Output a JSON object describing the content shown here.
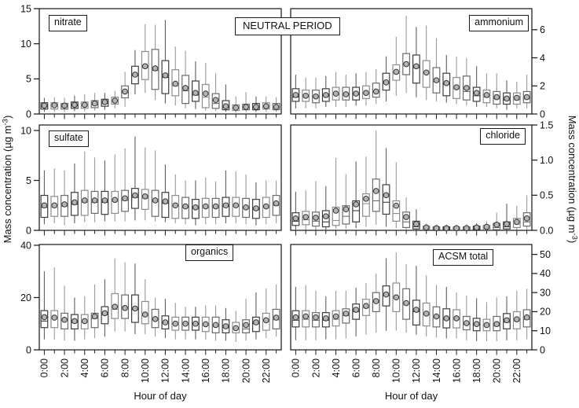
{
  "figure": {
    "background": "#ffffff",
    "period_label": "NEUTRAL PERIOD",
    "x_axis_title": "Hour of day",
    "y_axis_title": {
      "base": "Mass concentration (µg m",
      "sup": "-3",
      "close": ")"
    },
    "x_tick_labels": [
      "0:00",
      "2:00",
      "4:00",
      "6:00",
      "8:00",
      "10:00",
      "12:00",
      "14:00",
      "16:00",
      "18:00",
      "20:00",
      "22:00"
    ]
  },
  "chart_data": {
    "type": "box",
    "x_unit": "hour of day (24 hourly boxes per panel)",
    "n_boxes_per_panel": 24,
    "marker_semantics": {
      "box": "interquartile range",
      "inner_line": "median",
      "whiskers": "range",
      "circle": "mean"
    },
    "colors": {
      "box_fill": "#ffffff",
      "whisker_gray": "#9a9a9a",
      "whisker_dark": "#606060",
      "box_stroke_dark": "#3d3d3d",
      "box_stroke_mid": "#6a6a6a",
      "box_stroke_light": "#8c8c8c",
      "mean_fill": "#b5b5b5",
      "mean_stroke": "#333333",
      "frame": "#1c1c1c"
    },
    "panels": [
      {
        "key": "nitrate",
        "label": "nitrate",
        "grid": {
          "row": 0,
          "col": 0
        },
        "axis_side": "left",
        "ylim": [
          0,
          15
        ],
        "yticks": [
          0,
          5,
          10,
          15
        ],
        "ytick_labels": [
          "0",
          "5",
          "10",
          "15"
        ],
        "stats": {
          "lo": [
            0.3,
            0.3,
            0.3,
            0.4,
            0.4,
            0.5,
            0.6,
            0.8,
            1.0,
            2.8,
            3.0,
            2.0,
            1.5,
            1.2,
            0.8,
            0.7,
            0.5,
            0.4,
            0.3,
            0.2,
            0.3,
            0.3,
            0.3,
            0.3
          ],
          "q1": [
            0.7,
            0.7,
            0.7,
            0.8,
            0.8,
            0.9,
            1.1,
            1.4,
            2.3,
            4.3,
            4.9,
            3.5,
            2.9,
            2.6,
            1.5,
            1.8,
            0.9,
            0.8,
            0.6,
            0.5,
            0.6,
            0.6,
            0.7,
            0.6
          ],
          "med": [
            1.0,
            1.1,
            1.0,
            1.2,
            1.2,
            1.3,
            1.5,
            1.8,
            3.1,
            5.5,
            6.6,
            6.2,
            5.2,
            4.0,
            3.3,
            2.7,
            2.4,
            1.5,
            0.9,
            0.8,
            0.9,
            0.9,
            1.0,
            0.9
          ],
          "q3": [
            1.6,
            1.6,
            1.5,
            1.7,
            1.7,
            1.9,
            2.1,
            2.4,
            4.0,
            6.8,
            8.9,
            9.2,
            7.6,
            6.3,
            5.5,
            4.7,
            4.2,
            2.9,
            1.9,
            1.3,
            1.4,
            1.5,
            1.6,
            1.5
          ],
          "hi": [
            2.3,
            2.4,
            2.3,
            2.6,
            2.8,
            3.0,
            3.0,
            3.3,
            6.0,
            9.1,
            12.8,
            12.7,
            13.4,
            9.6,
            9.0,
            7.5,
            7.3,
            5.8,
            4.2,
            2.5,
            3.1,
            2.5,
            2.5,
            2.4
          ],
          "mean": [
            1.2,
            1.25,
            1.2,
            1.3,
            1.3,
            1.5,
            1.7,
            1.9,
            3.2,
            5.6,
            6.8,
            6.5,
            5.5,
            4.3,
            3.7,
            3.0,
            2.9,
            2.0,
            1.1,
            0.9,
            1.0,
            1.0,
            1.1,
            1.0
          ]
        }
      },
      {
        "key": "ammonium",
        "label": "ammonium",
        "grid": {
          "row": 0,
          "col": 1
        },
        "axis_side": "right",
        "ylim": [
          0,
          7.5
        ],
        "yticks": [
          0,
          2,
          4,
          6
        ],
        "ytick_labels": [
          "0",
          "2",
          "4",
          "6"
        ],
        "stats": {
          "lo": [
            0.4,
            0.4,
            0.4,
            0.5,
            0.5,
            0.5,
            0.6,
            0.6,
            0.7,
            0.9,
            1.3,
            1.5,
            1.2,
            1.0,
            0.9,
            0.8,
            0.7,
            0.6,
            0.5,
            0.5,
            0.4,
            0.3,
            0.4,
            0.4
          ],
          "q1": [
            0.9,
            0.9,
            0.8,
            0.9,
            1.0,
            1.0,
            1.0,
            1.1,
            1.2,
            1.7,
            2.4,
            2.8,
            2.2,
            1.9,
            1.5,
            1.3,
            1.1,
            1.0,
            0.9,
            0.8,
            0.7,
            0.7,
            0.7,
            0.8
          ],
          "med": [
            1.2,
            1.2,
            1.2,
            1.3,
            1.4,
            1.4,
            1.4,
            1.5,
            1.6,
            2.2,
            2.9,
            3.5,
            3.3,
            2.9,
            2.3,
            2.1,
            1.8,
            1.6,
            1.3,
            1.2,
            1.1,
            1.0,
            1.0,
            1.1
          ],
          "q3": [
            1.8,
            1.7,
            1.7,
            1.8,
            1.9,
            1.9,
            1.9,
            2.0,
            2.2,
            2.9,
            3.5,
            4.3,
            4.2,
            3.8,
            3.3,
            2.9,
            2.6,
            2.7,
            1.9,
            1.7,
            1.6,
            1.5,
            1.5,
            1.6
          ],
          "hi": [
            2.8,
            2.6,
            2.6,
            2.7,
            3.0,
            2.8,
            2.9,
            3.0,
            3.2,
            4.1,
            5.5,
            7.0,
            6.2,
            6.3,
            5.4,
            4.2,
            4.1,
            4.0,
            3.4,
            2.9,
            2.9,
            2.4,
            2.3,
            2.8
          ],
          "mean": [
            1.35,
            1.3,
            1.25,
            1.35,
            1.45,
            1.4,
            1.45,
            1.5,
            1.6,
            2.25,
            3.0,
            3.55,
            3.4,
            2.95,
            2.4,
            2.2,
            1.9,
            1.85,
            1.5,
            1.35,
            1.2,
            1.1,
            1.15,
            1.2
          ]
        }
      },
      {
        "key": "sulfate",
        "label": "sulfate",
        "grid": {
          "row": 1,
          "col": 0
        },
        "axis_side": "left",
        "ylim": [
          0,
          10.55
        ],
        "yticks": [
          0,
          5,
          10
        ],
        "ytick_labels": [
          "0",
          "5",
          "10"
        ],
        "stats": {
          "lo": [
            0.6,
            0.7,
            0.5,
            0.7,
            0.8,
            0.8,
            0.9,
            0.9,
            0.9,
            1.0,
            1.0,
            0.9,
            0.8,
            0.7,
            0.6,
            0.5,
            0.6,
            0.6,
            0.7,
            0.7,
            0.6,
            0.5,
            0.6,
            0.7
          ],
          "q1": [
            1.3,
            1.4,
            1.4,
            1.5,
            1.5,
            1.7,
            1.6,
            1.7,
            1.9,
            2.2,
            2.1,
            1.4,
            1.3,
            1.2,
            1.2,
            1.2,
            1.3,
            1.3,
            1.4,
            1.4,
            1.3,
            1.2,
            1.3,
            1.5
          ],
          "med": [
            2.3,
            2.3,
            2.4,
            2.6,
            2.8,
            2.8,
            2.8,
            2.9,
            3.0,
            3.3,
            3.2,
            2.9,
            2.7,
            2.4,
            2.3,
            2.2,
            2.3,
            2.3,
            2.4,
            2.4,
            2.2,
            2.1,
            2.3,
            2.5
          ],
          "q3": [
            3.5,
            3.4,
            3.5,
            3.8,
            4.0,
            3.9,
            3.9,
            3.9,
            4.0,
            4.2,
            4.1,
            4.0,
            3.8,
            3.5,
            3.3,
            3.1,
            3.2,
            3.2,
            3.3,
            3.3,
            3.2,
            3.1,
            3.3,
            3.5
          ],
          "hi": [
            6.0,
            6.2,
            6.0,
            6.7,
            7.9,
            7.3,
            7.0,
            7.6,
            8.2,
            9.4,
            8.3,
            8.0,
            6.6,
            5.6,
            5.0,
            5.0,
            5.3,
            4.9,
            6.0,
            5.9,
            5.6,
            4.8,
            5.0,
            5.0
          ],
          "mean": [
            2.5,
            2.5,
            2.6,
            2.8,
            3.0,
            3.0,
            3.0,
            3.05,
            3.2,
            3.5,
            3.4,
            3.0,
            2.9,
            2.5,
            2.4,
            2.3,
            2.4,
            2.4,
            2.5,
            2.5,
            2.3,
            2.2,
            2.4,
            2.7
          ]
        }
      },
      {
        "key": "chloride",
        "label": "chloride",
        "grid": {
          "row": 1,
          "col": 1
        },
        "axis_side": "right",
        "ylim": [
          0,
          1.5
        ],
        "yticks": [
          0,
          0.5,
          1.0,
          1.5
        ],
        "ytick_labels": [
          "0.0",
          "0.5",
          "1.0",
          "1.5"
        ],
        "stats": {
          "lo": [
            0.01,
            0.01,
            0.01,
            0.01,
            0.02,
            0.02,
            0.03,
            0.05,
            0.08,
            0.05,
            0.03,
            0.01,
            0.0,
            0.0,
            0.0,
            0.0,
            0.0,
            0.0,
            0.0,
            0.0,
            0.0,
            0.0,
            0.01,
            0.01
          ],
          "q1": [
            0.07,
            0.08,
            0.06,
            0.05,
            0.07,
            0.09,
            0.12,
            0.2,
            0.27,
            0.23,
            0.13,
            0.04,
            0.02,
            0.01,
            0.01,
            0.01,
            0.01,
            0.01,
            0.01,
            0.01,
            0.01,
            0.02,
            0.04,
            0.06
          ],
          "med": [
            0.13,
            0.15,
            0.13,
            0.12,
            0.14,
            0.2,
            0.28,
            0.38,
            0.42,
            0.4,
            0.24,
            0.12,
            0.05,
            0.03,
            0.02,
            0.02,
            0.02,
            0.02,
            0.02,
            0.03,
            0.04,
            0.05,
            0.09,
            0.12
          ],
          "q3": [
            0.25,
            0.27,
            0.26,
            0.28,
            0.33,
            0.35,
            0.42,
            0.52,
            0.73,
            0.65,
            0.42,
            0.26,
            0.13,
            0.06,
            0.05,
            0.05,
            0.05,
            0.05,
            0.06,
            0.07,
            0.1,
            0.12,
            0.17,
            0.25
          ],
          "hi": [
            0.55,
            0.57,
            0.7,
            0.63,
            1.03,
            0.8,
            0.98,
            1.05,
            1.42,
            1.17,
            0.97,
            0.47,
            0.3,
            0.1,
            0.08,
            0.08,
            0.08,
            0.09,
            0.1,
            0.13,
            0.25,
            0.38,
            0.35,
            0.5
          ],
          "mean": [
            0.17,
            0.19,
            0.18,
            0.2,
            0.28,
            0.3,
            0.37,
            0.45,
            0.56,
            0.5,
            0.35,
            0.19,
            0.09,
            0.04,
            0.03,
            0.03,
            0.03,
            0.03,
            0.04,
            0.05,
            0.08,
            0.09,
            0.12,
            0.17
          ]
        }
      },
      {
        "key": "organics",
        "label": "organics",
        "grid": {
          "row": 2,
          "col": 0
        },
        "axis_side": "left",
        "ylim": [
          0,
          40.3
        ],
        "yticks": [
          0,
          20,
          40
        ],
        "ytick_labels": [
          "0",
          "20",
          "40"
        ],
        "stats": {
          "lo": [
            4,
            4,
            3.5,
            3.5,
            4,
            4.5,
            5,
            7,
            7,
            6,
            6,
            5,
            4.5,
            4,
            4,
            4,
            4,
            3.5,
            3.5,
            3,
            3.5,
            4,
            4.5,
            5
          ],
          "q1": [
            8.5,
            8.5,
            8,
            8,
            8,
            8.5,
            10,
            12,
            12,
            10.5,
            10,
            8.5,
            8,
            7.5,
            7.5,
            7.5,
            7,
            6.5,
            6.5,
            6.5,
            6.5,
            7,
            7.5,
            8
          ],
          "med": [
            11,
            12,
            11.5,
            10.5,
            10.5,
            12,
            13.5,
            15.5,
            16,
            15.5,
            13,
            11.5,
            10.5,
            10,
            10,
            10,
            9.5,
            9,
            8.5,
            8,
            8,
            10,
            11,
            11.5
          ],
          "q3": [
            15,
            15,
            14,
            13.5,
            13.5,
            14,
            16.5,
            21.5,
            21,
            21,
            18.5,
            15.5,
            13,
            12.5,
            12.5,
            12.5,
            12.5,
            12.5,
            11.5,
            10.5,
            11.5,
            12.5,
            14,
            15.5
          ],
          "hi": [
            30,
            31.5,
            24.5,
            20,
            20.5,
            25,
            27,
            35,
            33.5,
            33,
            27,
            20,
            19.5,
            18,
            16.5,
            16.5,
            17,
            17,
            16,
            15,
            19.5,
            22,
            23.5,
            25
          ],
          "mean": [
            12.5,
            12.3,
            11.5,
            11,
            11,
            12.8,
            14,
            16.5,
            16,
            15.8,
            13.5,
            11.8,
            10.5,
            10,
            10,
            10,
            9.8,
            9.5,
            9,
            8.3,
            9.5,
            10.5,
            11.3,
            12.3
          ]
        }
      },
      {
        "key": "acsm_total",
        "label": "ACSM total",
        "grid": {
          "row": 2,
          "col": 1
        },
        "axis_side": "right",
        "ylim": [
          0,
          55.2
        ],
        "yticks": [
          0,
          10,
          20,
          30,
          40,
          50
        ],
        "ytick_labels": [
          "0",
          "10",
          "20",
          "30",
          "40",
          "50"
        ],
        "stats": {
          "lo": [
            5,
            5,
            5,
            5.5,
            5.5,
            6,
            7,
            8,
            9,
            10,
            10,
            9,
            8,
            7,
            6.5,
            6,
            6,
            5,
            4.5,
            4.5,
            4.5,
            5,
            5,
            5.5
          ],
          "q1": [
            12,
            12,
            12,
            12,
            12.5,
            14,
            16,
            18,
            20,
            23,
            20,
            16,
            13,
            12.5,
            12,
            11.5,
            11.5,
            10.5,
            10,
            10,
            10,
            11,
            11,
            12
          ],
          "med": [
            15.5,
            16,
            15.5,
            15.5,
            16,
            18,
            20,
            22,
            25,
            28.5,
            27,
            24,
            20,
            18.5,
            17,
            16,
            16,
            13.5,
            13,
            12.5,
            12.5,
            14.5,
            15,
            16
          ],
          "q3": [
            20.5,
            20.5,
            19.5,
            19.5,
            20.5,
            21.5,
            24,
            26.5,
            30,
            33.5,
            35,
            32,
            26,
            24.5,
            22.5,
            21.5,
            21,
            17.5,
            16.5,
            16,
            17.5,
            19,
            20,
            21
          ],
          "hi": [
            33,
            34,
            31,
            28,
            31,
            31,
            32.5,
            35,
            40,
            48,
            51,
            45,
            44,
            39,
            34,
            33,
            30,
            28.5,
            27,
            25,
            27.5,
            28,
            31,
            32
          ],
          "mean": [
            17,
            17.5,
            17,
            16.5,
            17.5,
            19,
            21,
            23,
            25.5,
            29,
            27.5,
            24.5,
            21,
            19,
            17.5,
            16.5,
            16.5,
            14,
            13.5,
            13,
            13.5,
            15.5,
            16,
            17
          ]
        }
      }
    ]
  }
}
